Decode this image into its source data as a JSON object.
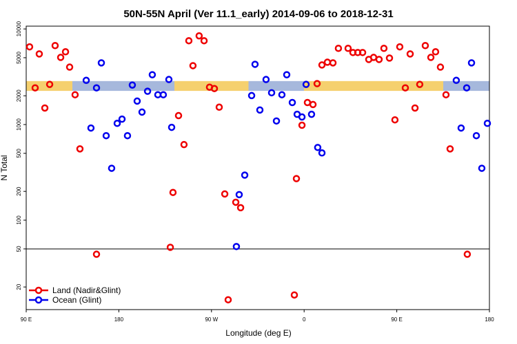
{
  "chart_data": {
    "type": "scatter",
    "title": "50N-55N April (Ver 11.1_early)   2014-09-06 to 2018-12-31",
    "x_label": "Longitude (deg E)",
    "y_label": "N Total",
    "log_y": true,
    "xlim": [
      90,
      540
    ],
    "ylim": [
      11.6,
      10700
    ],
    "xticks": [
      {
        "value": 90,
        "label": "90 E"
      },
      180,
      {
        "value": 270,
        "label": "90 W"
      },
      {
        "value": 360,
        "label": "0"
      },
      {
        "value": 450,
        "label": "90 E"
      },
      {
        "value": 540,
        "label": "180"
      }
    ],
    "yticks": [
      20,
      50,
      100,
      200,
      500,
      1000,
      2000,
      5000,
      10000
    ],
    "hline": 50,
    "band": [
      2250,
      2850
    ],
    "legend": "bottom-left",
    "series": [
      {
        "name": "Land (Nadir&Glint)",
        "color": "#ee0000",
        "x": [
          93.3,
          98.7,
          102.7,
          108.1,
          112.8,
          118.1,
          123.5,
          128.2,
          132.2,
          137.5,
          142.2,
          158.3,
          230,
          232.6,
          238,
          243.3,
          248,
          252,
          258,
          262.8,
          268.1,
          272.8,
          277.5,
          282.9,
          286.2,
          293.6,
          298.3,
          350.5,
          352.5,
          357.9,
          363.2,
          368.6,
          372.6,
          377.3,
          382.6,
          388,
          393.3,
          402.7,
          407.4,
          412.1,
          416.8,
          422.8,
          427.5,
          432.8,
          437.5,
          442.9,
          448.2,
          452.9,
          458.3,
          463,
          467.7,
          472.3,
          477.7,
          483.1,
          487.7,
          492.4,
          497.8,
          501.8,
          518.5
        ],
        "values": [
          6500,
          2420,
          5480,
          1490,
          2630,
          6700,
          5040,
          5770,
          3990,
          2050,
          557,
          44,
          52,
          195,
          1240,
          617,
          7530,
          4130,
          8470,
          7530,
          2460,
          2380,
          1520,
          188,
          14.7,
          154,
          135,
          16.5,
          272,
          984,
          1700,
          1620,
          2680,
          4200,
          4490,
          4420,
          6270,
          6270,
          5670,
          5670,
          5670,
          4800,
          5040,
          4800,
          6270,
          4960,
          1120,
          6500,
          2420,
          5480,
          1490,
          2630,
          6700,
          5040,
          5770,
          3990,
          2050,
          557,
          44
        ]
      },
      {
        "name": "Ocean (Glint)",
        "color": "#0000ee",
        "x": [
          148.3,
          152.9,
          158.3,
          163,
          167.7,
          173,
          178.4,
          183.1,
          188.4,
          193.1,
          197.8,
          202.5,
          207.9,
          212.5,
          217.9,
          223.2,
          228.6,
          231.3,
          294.2,
          296.9,
          302.3,
          309,
          312.3,
          317,
          323,
          328.4,
          333.1,
          338.4,
          343.1,
          348.5,
          353.2,
          357.9,
          361.9,
          367.2,
          373.2,
          377.3,
          507.8,
          512.5,
          517.9,
          522.6,
          527.3,
          532.6,
          538
        ],
        "values": [
          2900,
          920,
          2420,
          4420,
          765,
          349,
          1030,
          1140,
          765,
          2590,
          1760,
          1350,
          2230,
          3320,
          2050,
          2050,
          2960,
          935,
          53,
          185,
          296,
          2010,
          4270,
          1420,
          2960,
          2150,
          1090,
          2050,
          3320,
          1700,
          1280,
          1200,
          2630,
          1280,
          576,
          505,
          2900,
          920,
          2420,
          4420,
          765,
          349,
          1030
        ]
      }
    ]
  }
}
